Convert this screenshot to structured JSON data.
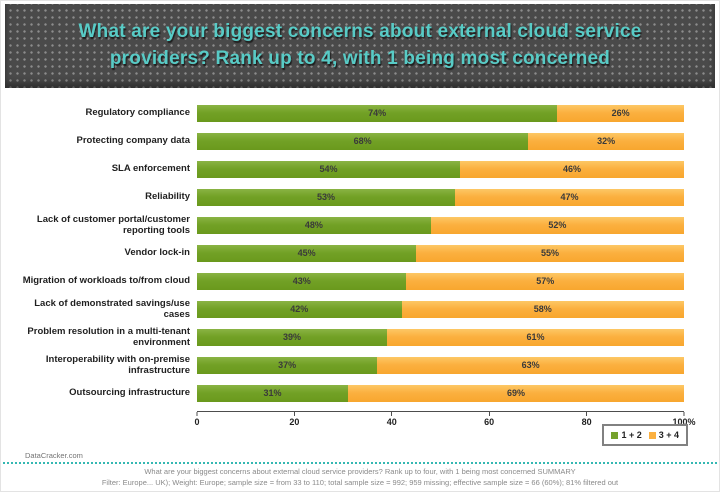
{
  "header": {
    "title_lines": [
      "What are your biggest concerns about external cloud service",
      "providers? Rank up to 4, with 1 being most concerned"
    ]
  },
  "chart_data": {
    "type": "bar",
    "orientation": "horizontal",
    "stacked": true,
    "title": "What are your biggest concerns about external cloud service providers? Rank up to 4, with 1 being most concerned",
    "categories": [
      "Regulatory compliance",
      "Protecting company data",
      "SLA enforcement",
      "Reliability",
      "Lack of customer portal/customer reporting tools",
      "Vendor lock-in",
      "Migration of workloads to/from cloud",
      "Lack of demonstrated savings/use cases",
      "Problem resolution in a multi-tenant environment",
      "Interoperability with on-premise infrastructure",
      "Outsourcing infrastructure"
    ],
    "series": [
      {
        "name": "1 + 2",
        "key": "1-2",
        "color": "#76a22d",
        "values": [
          74,
          68,
          54,
          53,
          48,
          45,
          43,
          42,
          39,
          37,
          31
        ]
      },
      {
        "name": "3 + 4",
        "key": "3-4",
        "color": "#fbb040",
        "values": [
          26,
          32,
          46,
          47,
          52,
          55,
          57,
          58,
          61,
          63,
          69
        ]
      }
    ],
    "value_suffix": "%",
    "x_ticks": [
      "0",
      "20",
      "40",
      "60",
      "80",
      "100%"
    ],
    "xlim": [
      0,
      100
    ],
    "grid": false,
    "legend_position": "bottom-right"
  },
  "legend": {
    "items": [
      {
        "label": "1 + 2",
        "color": "#76a22d"
      },
      {
        "label": "3 + 4",
        "color": "#fbb040"
      }
    ]
  },
  "footer": {
    "watermark": "DataCracker.com",
    "note_line1": "What are your biggest concerns about external cloud service providers? Rank up to four, with 1 being most concerned SUMMARY",
    "note_line2": "Filter: Europe... UK); Weight: Europe; sample size = from 33 to 110; total sample size = 992; 959 missing; effective sample size = 66 (60%); 81% filtered out"
  },
  "colors": {
    "banner_background": "#4a4a4a",
    "title_text": "#58cbc6",
    "series_green": "#76a22d",
    "series_orange": "#fbb040",
    "divider_teal": "#35b8b2"
  }
}
